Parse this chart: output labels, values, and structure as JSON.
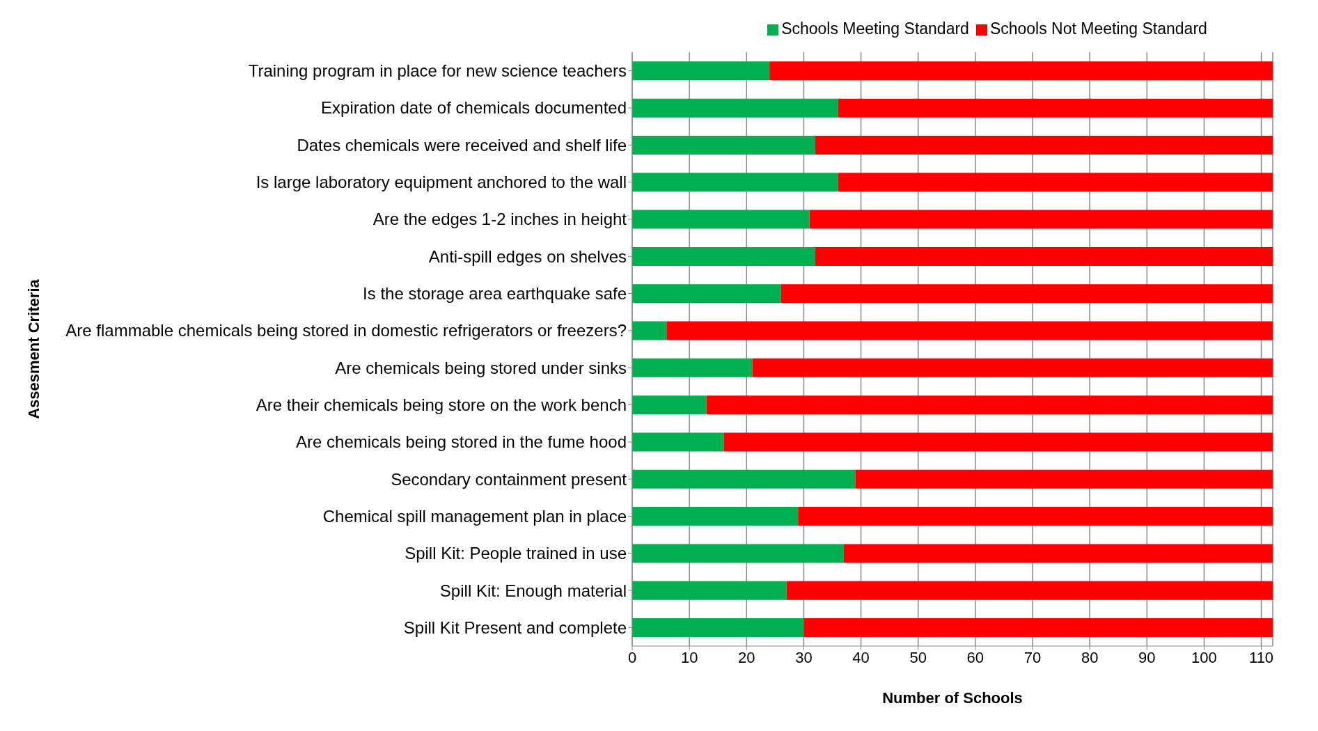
{
  "chart_data": {
    "type": "bar",
    "orientation": "horizontal",
    "stacked": true,
    "xlabel": "Number of Schools",
    "ylabel": "Assesment Criteria",
    "categories": [
      "Training program in place for new science teachers",
      "Expiration date of chemicals documented",
      "Dates chemicals were received and shelf life",
      "Is large laboratory equipment anchored to the wall",
      "Are the  edges 1-2 inches in height",
      "Anti-spill edges on shelves",
      "Is the storage area earthquake safe",
      "Are flammable chemicals being stored in domestic refrigerators or freezers?",
      "Are chemicals being stored under sinks",
      "Are their chemicals being store on the work bench",
      "Are chemicals being stored in the fume hood",
      "Secondary containment present",
      "Chemical spill management plan in place",
      "Spill Kit: People trained in use",
      "Spill Kit: Enough material",
      "Spill Kit Present and complete"
    ],
    "series": [
      {
        "name": "Schools Meeting Standard",
        "color": "#00b050",
        "values": [
          24,
          36,
          32,
          36,
          31,
          32,
          26,
          6,
          21,
          13,
          16,
          39,
          29,
          37,
          27,
          30
        ]
      },
      {
        "name": "Schools Not Meeting Standard",
        "color": "#ff0000",
        "values": [
          88,
          76,
          80,
          76,
          81,
          80,
          86,
          106,
          91,
          99,
          96,
          73,
          83,
          75,
          85,
          82
        ]
      }
    ],
    "xlim": [
      0,
      112
    ],
    "xticks": [
      0,
      10,
      20,
      30,
      40,
      50,
      60,
      70,
      80,
      90,
      100,
      110
    ],
    "grid": "x",
    "legend": "top"
  }
}
